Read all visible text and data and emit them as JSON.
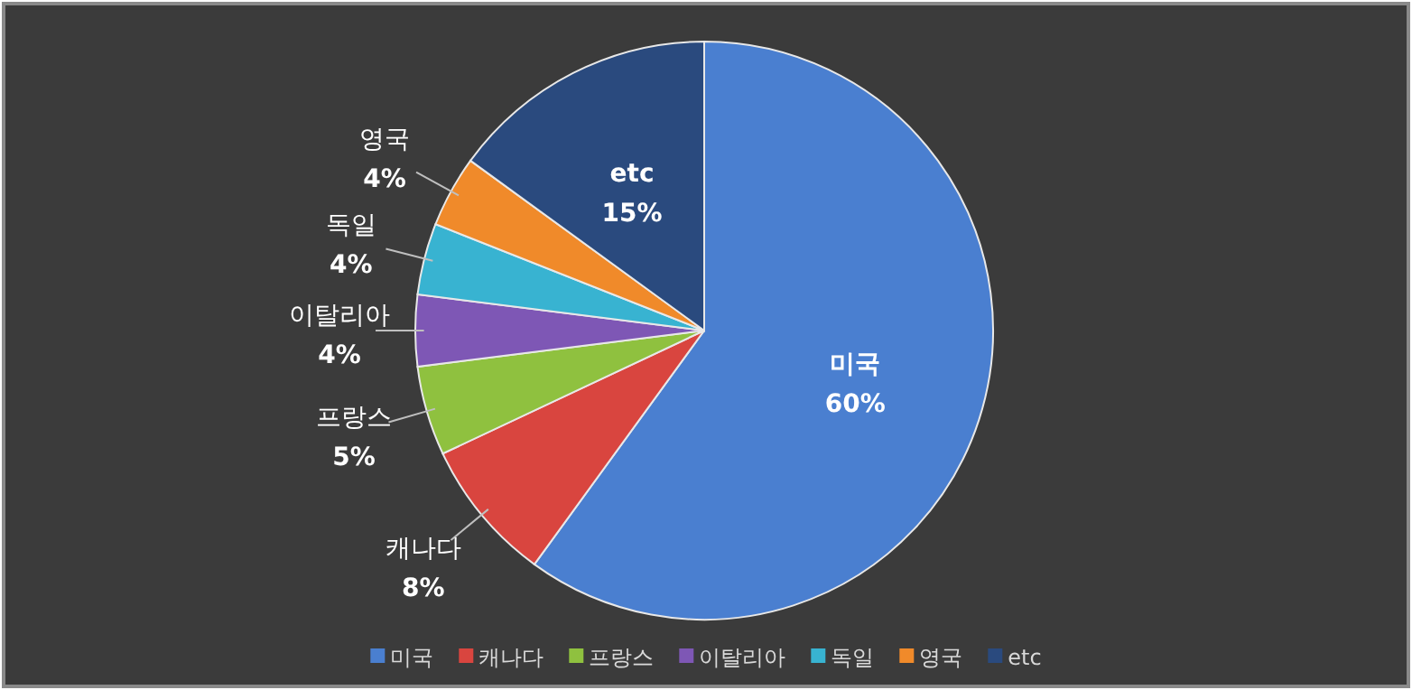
{
  "chart_data": {
    "type": "pie",
    "categories": [
      "미국",
      "캐나다",
      "프랑스",
      "이탈리아",
      "독일",
      "영국",
      "etc"
    ],
    "values": [
      60,
      8,
      5,
      4,
      4,
      4,
      15
    ],
    "value_labels": [
      "60%",
      "8%",
      "5%",
      "4%",
      "4%",
      "4%",
      "15%"
    ],
    "colors": [
      "#4a7fd0",
      "#d9453f",
      "#8fc13f",
      "#7e57b5",
      "#38b3d1",
      "#f08a2a",
      "#2a4a7e"
    ],
    "legend": "bottom"
  }
}
